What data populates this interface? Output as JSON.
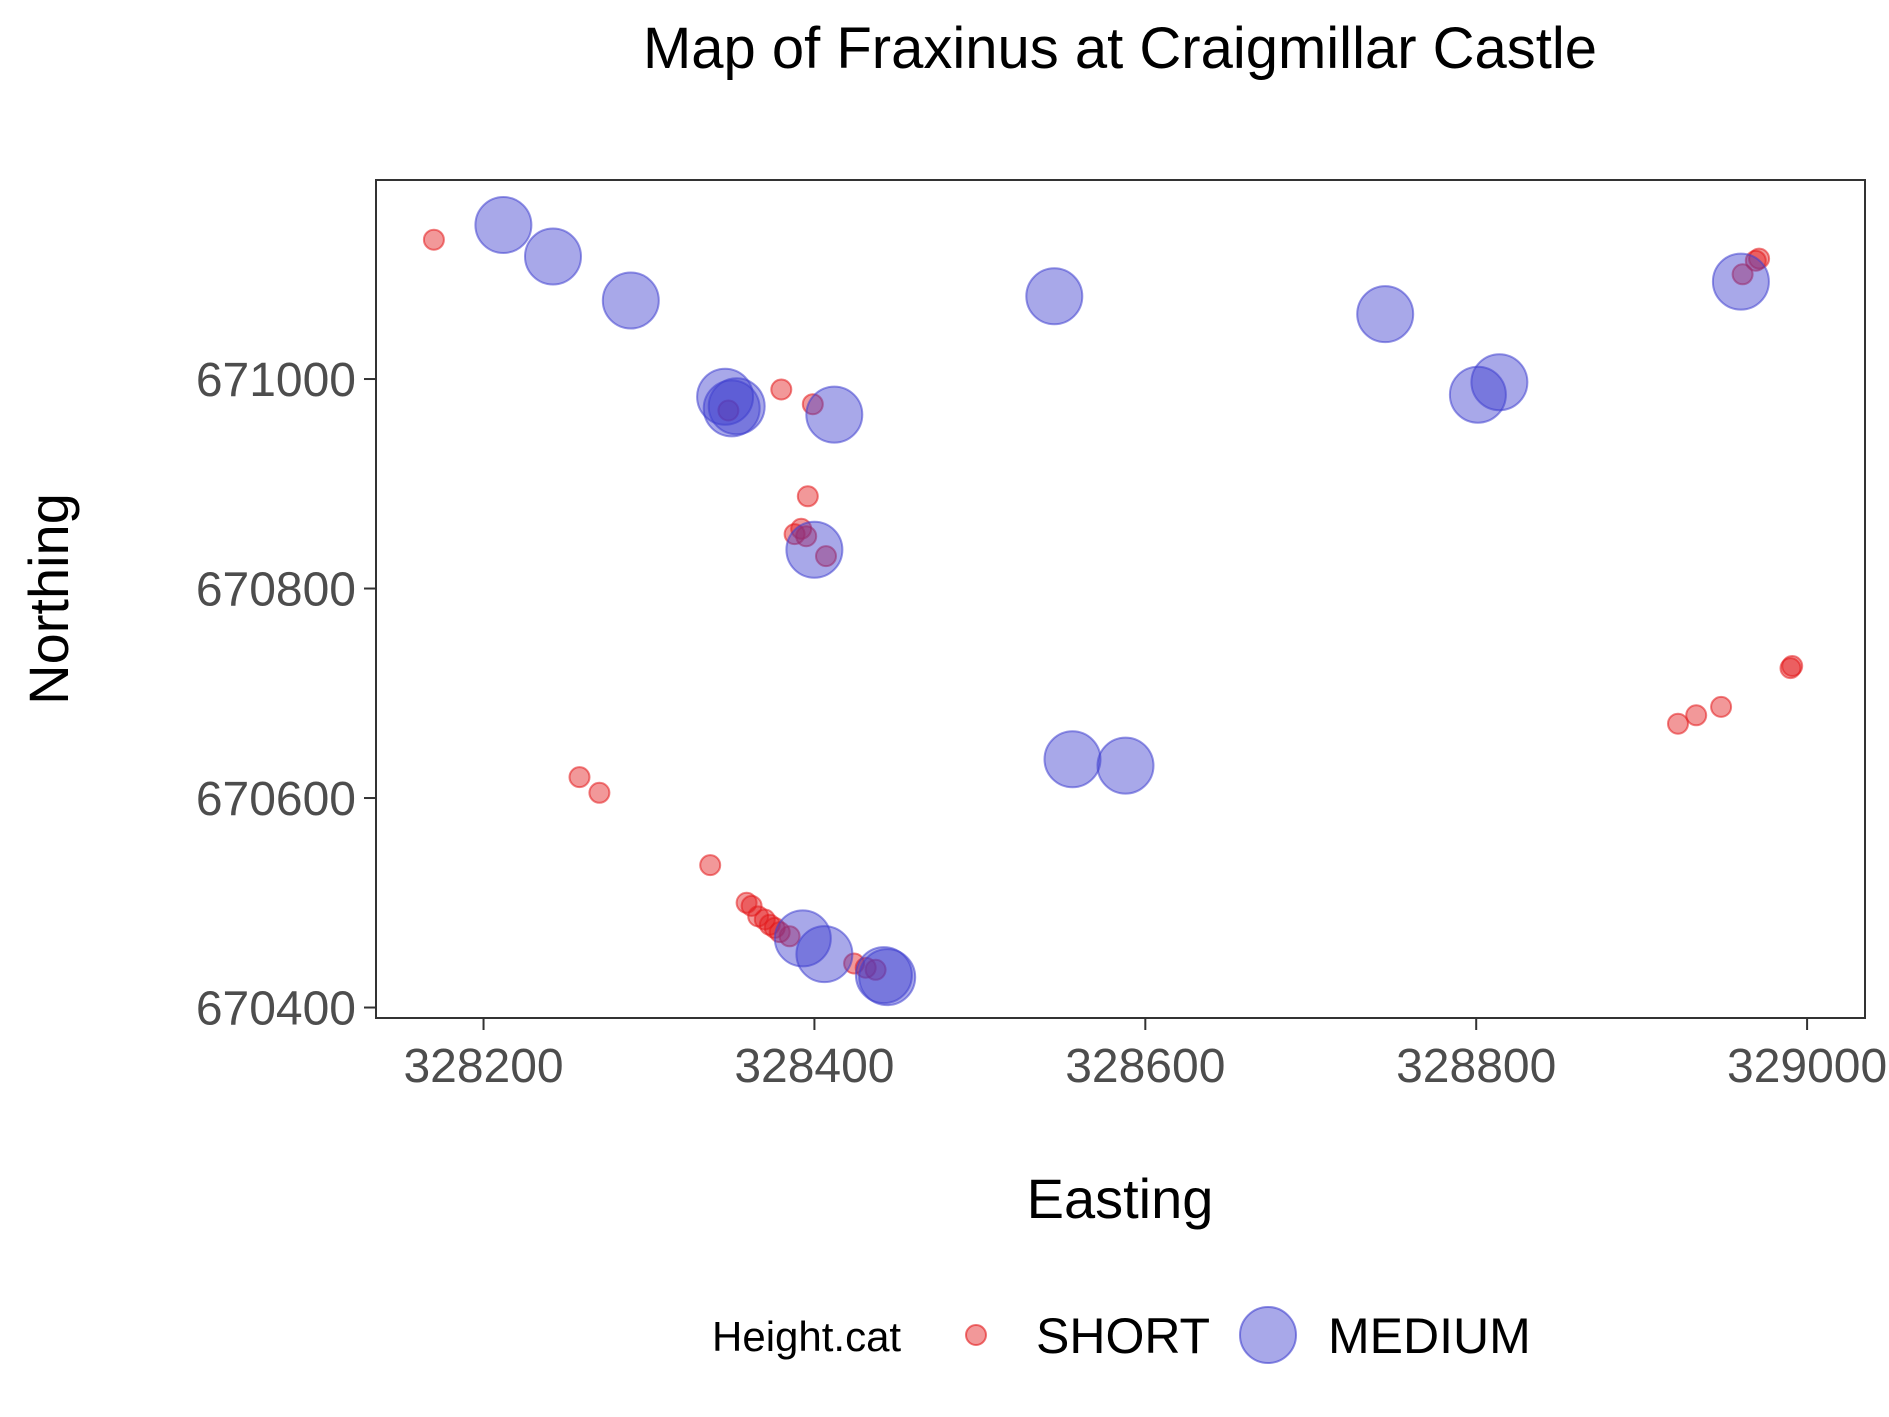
{
  "chart_data": {
    "type": "scatter",
    "title": "Map of Fraxinus at Craigmillar Castle",
    "xlabel": "Easting",
    "ylabel": "Northing",
    "xlim": [
      328135,
      329035
    ],
    "ylim": [
      670390,
      671190
    ],
    "x_ticks": [
      328200,
      328400,
      328600,
      328800,
      329000
    ],
    "y_ticks": [
      670400,
      670600,
      670800,
      671000
    ],
    "x_tick_labels": [
      "328200",
      "328400",
      "328600",
      "328800",
      "329000"
    ],
    "y_tick_labels": [
      "670400",
      "670600",
      "670800",
      "671000"
    ],
    "grid": false,
    "legend": {
      "title": "Height.cat",
      "placement": "bottom"
    },
    "series": [
      {
        "name": "SHORT",
        "color": "#e31a1c",
        "points": [
          [
            328170,
            671133
          ],
          [
            328348,
            670970
          ],
          [
            328380,
            670990
          ],
          [
            328399,
            670976
          ],
          [
            328396,
            670888
          ],
          [
            328392,
            670857
          ],
          [
            328388,
            670852
          ],
          [
            328395,
            670850
          ],
          [
            328407,
            670831
          ],
          [
            328258,
            670620
          ],
          [
            328270,
            670605
          ],
          [
            328337,
            670536
          ],
          [
            328359,
            670500
          ],
          [
            328362,
            670497
          ],
          [
            328366,
            670487
          ],
          [
            328370,
            670484
          ],
          [
            328373,
            670479
          ],
          [
            328376,
            670476
          ],
          [
            328379,
            670472
          ],
          [
            328385,
            670468
          ],
          [
            328424,
            670442
          ],
          [
            328431,
            670438
          ],
          [
            328437,
            670436
          ],
          [
            328971,
            671115
          ],
          [
            328969,
            671113
          ],
          [
            328961,
            671100
          ],
          [
            328991,
            670726
          ],
          [
            328990,
            670724
          ],
          [
            328948,
            670687
          ],
          [
            328933,
            670679
          ],
          [
            328922,
            670671
          ]
        ]
      },
      {
        "name": "MEDIUM",
        "color": "#3f3fcf",
        "points": [
          [
            328212,
            671147
          ],
          [
            328242,
            671117
          ],
          [
            328289,
            671075
          ],
          [
            328346,
            670983
          ],
          [
            328350,
            670972
          ],
          [
            328353,
            670974
          ],
          [
            328412,
            670966
          ],
          [
            328400,
            670837
          ],
          [
            328545,
            671079
          ],
          [
            328745,
            671062
          ],
          [
            328801,
            670985
          ],
          [
            328814,
            670997
          ],
          [
            328960,
            671093
          ],
          [
            328556,
            670637
          ],
          [
            328588,
            670631
          ],
          [
            328393,
            670466
          ],
          [
            328406,
            670451
          ],
          [
            328442,
            670431
          ],
          [
            328444,
            670429
          ]
        ]
      }
    ]
  }
}
